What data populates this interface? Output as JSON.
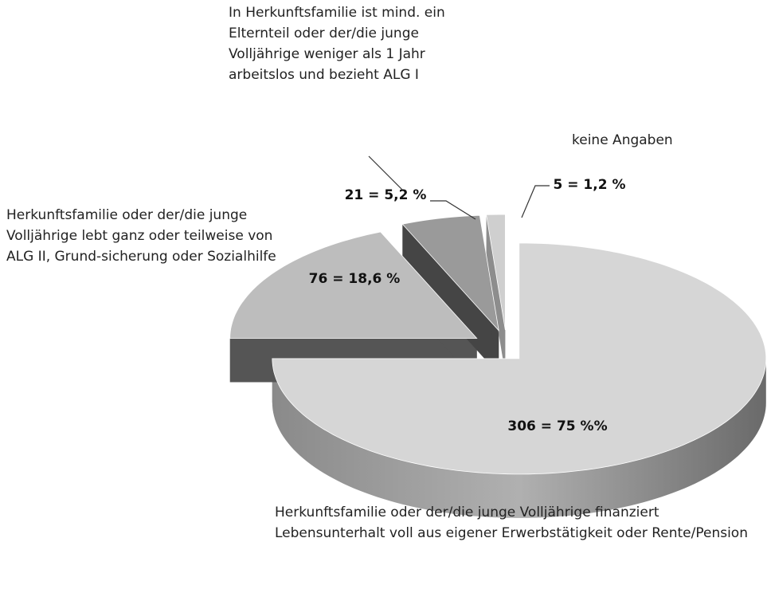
{
  "chart_data": {
    "type": "pie",
    "categories": [
      "Herkunftsfamilie oder der/die junge Volljährige finanziert Lebensunterhalt voll aus eigener Erwerbstätigkeit oder Rente/Pension",
      "Herkunftsfamilie oder der/die junge Volljährige lebt ganz oder teilweise von ALG II, Grund-sicherung oder Sozialhilfe",
      "In Herkunftsfamilie ist mind. ein Elternteil oder der/die junge Volljährige weniger als 1 Jahr arbeitslos und bezieht ALG I",
      "keine Angaben"
    ],
    "values": [
      306,
      76,
      21,
      5
    ],
    "value_labels": [
      "306 = 75 %%",
      "76  = 18,6 %",
      "21 =  5,2 %",
      "5 = 1,2 %"
    ],
    "colors": [
      "#d6d6d6",
      "#bdbdbd",
      "#9a9a9a",
      "#cfcfcf"
    ]
  }
}
